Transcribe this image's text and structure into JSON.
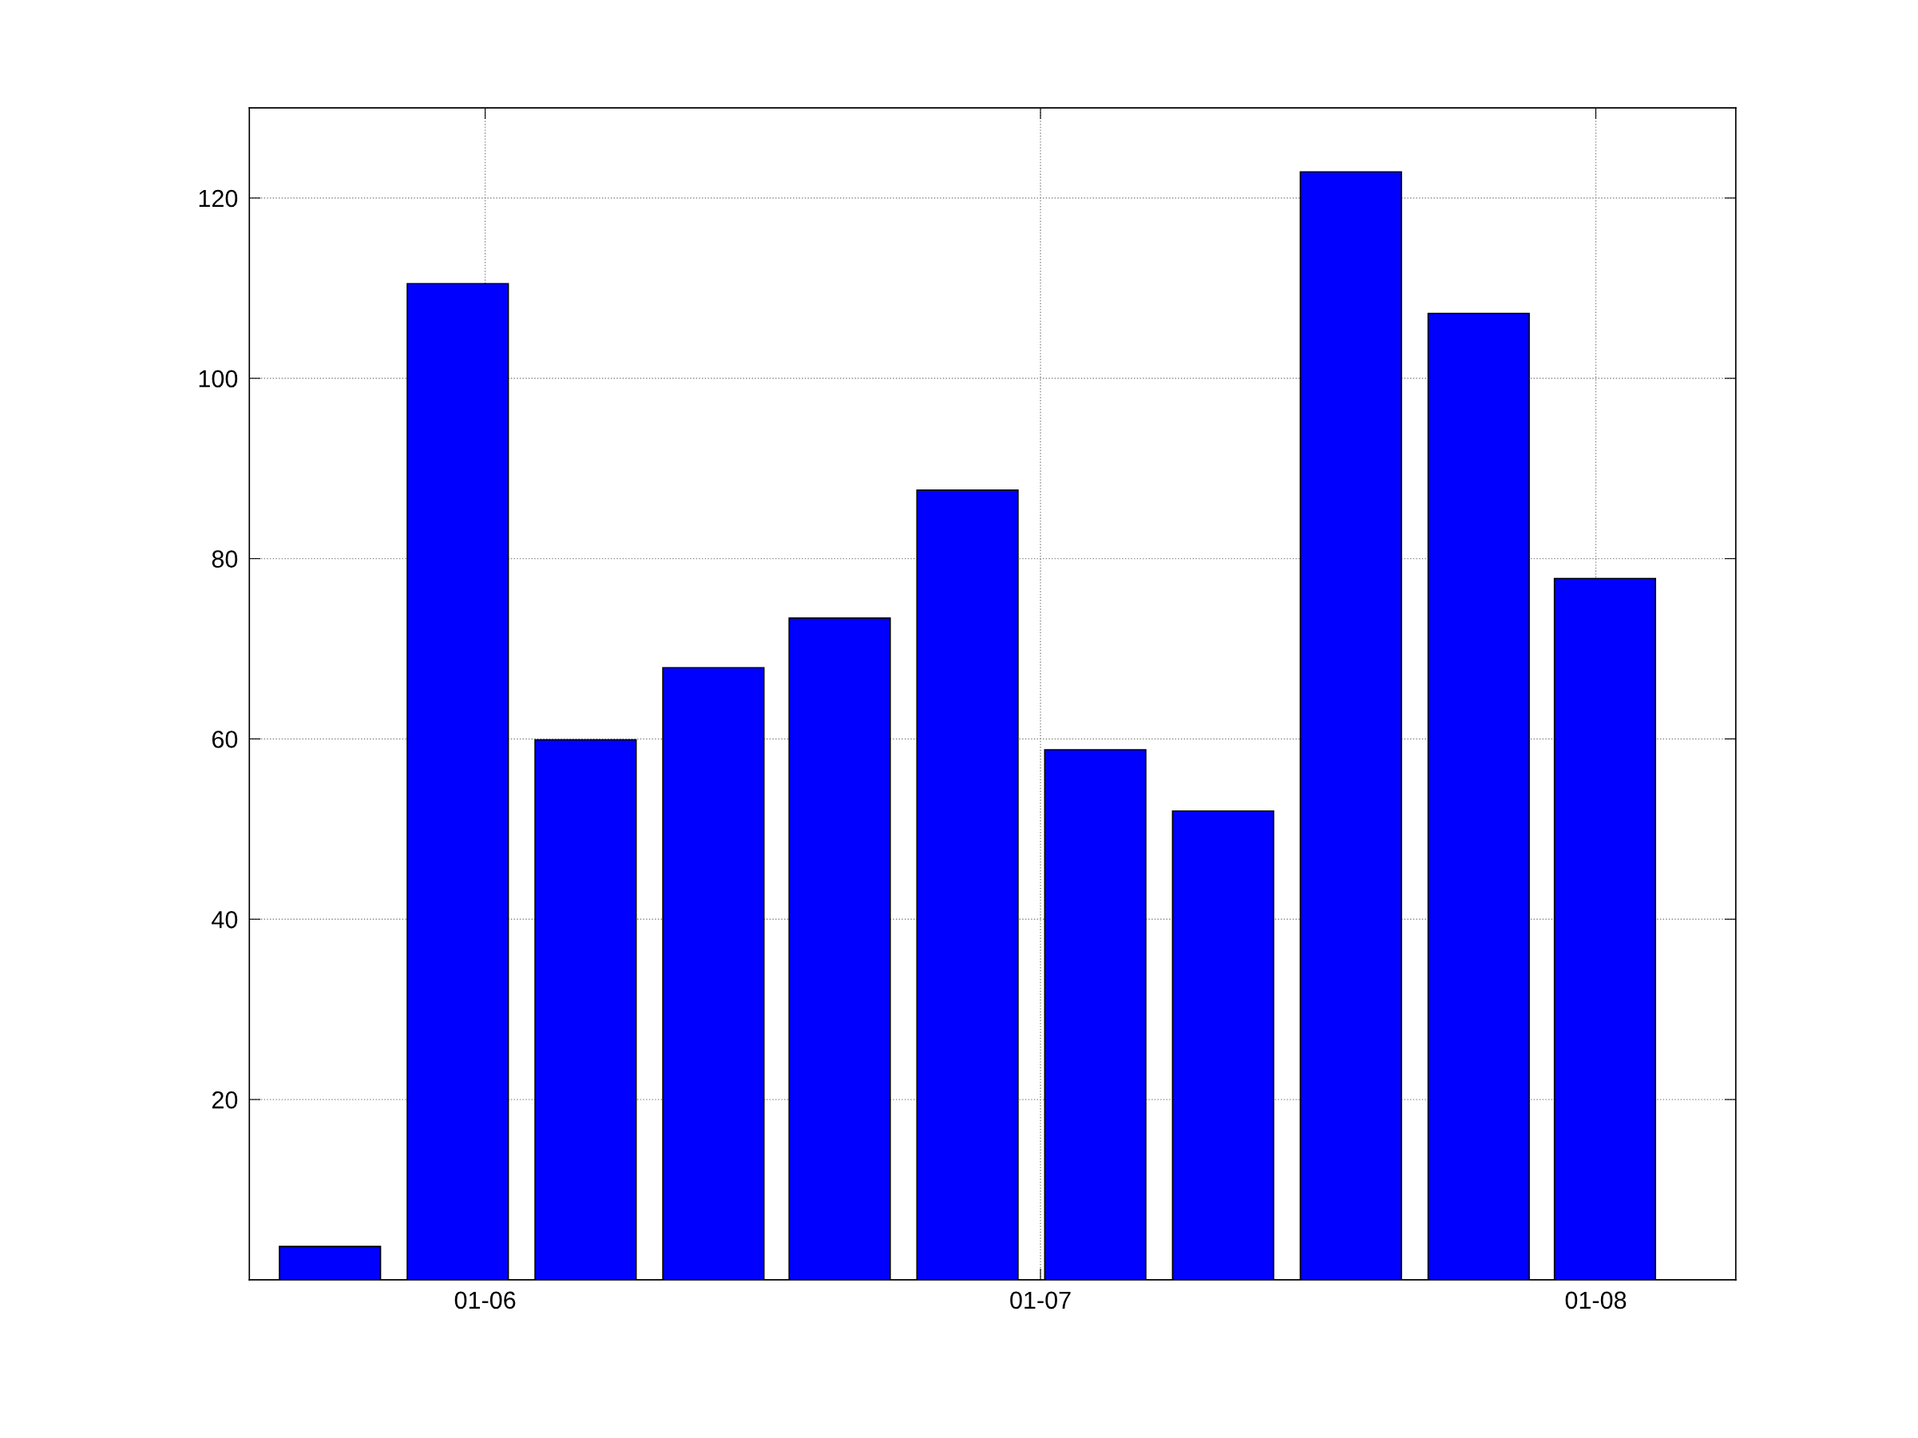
{
  "chart_data": {
    "type": "bar",
    "x": [
      "2005-09-21",
      "2005-12-14",
      "2006-03-08",
      "2006-05-31",
      "2006-08-22",
      "2006-11-14",
      "2007-02-06",
      "2007-05-01",
      "2007-07-24",
      "2007-10-16",
      "2008-01-07"
    ],
    "values": [
      3.7,
      110.5,
      59.9,
      67.9,
      73.4,
      87.6,
      58.8,
      52.0,
      122.9,
      107.2,
      77.8
    ],
    "color": "#0000ff",
    "xlim": [
      "2005-07-30",
      "2008-04-02"
    ],
    "xticks": [
      {
        "value": "2006-01-01",
        "label": "01-06"
      },
      {
        "value": "2007-01-01",
        "label": "01-07"
      },
      {
        "value": "2008-01-01",
        "label": "01-08"
      }
    ],
    "ylim": [
      0,
      130
    ],
    "yticks": [
      20,
      40,
      60,
      80,
      100,
      120
    ],
    "grid": true
  }
}
